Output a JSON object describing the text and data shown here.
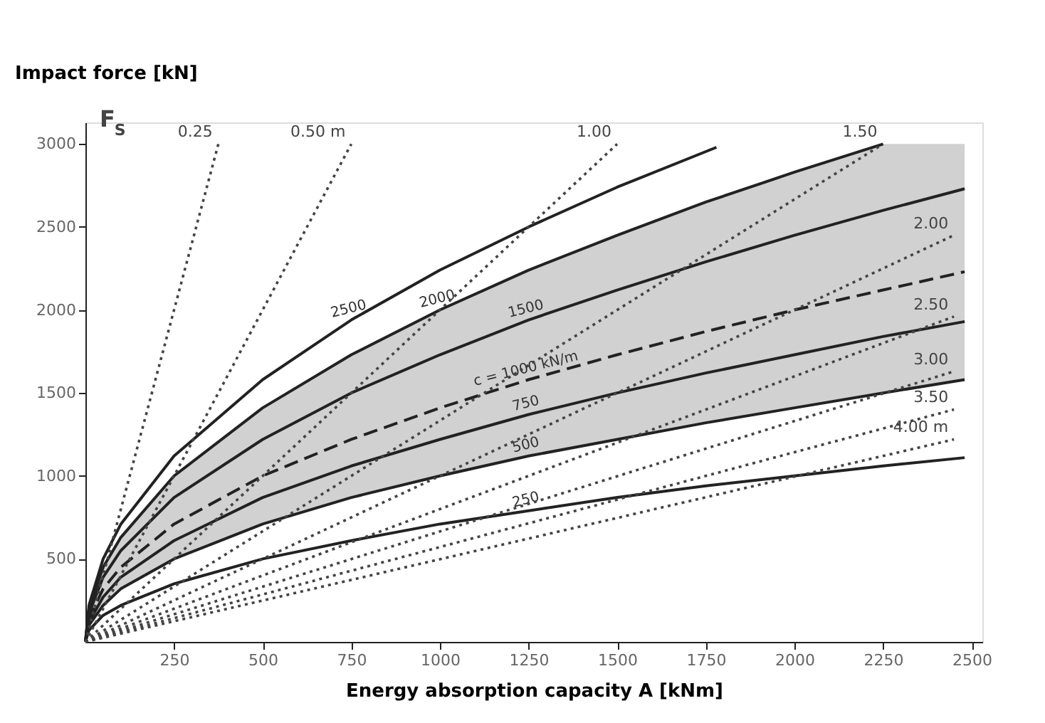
{
  "chart_data": {
    "type": "line",
    "xlabel": "Energy absorption capacity A [kNm]",
    "ylabel": "Impact force [kN]",
    "annotations": [
      "F$_{S}$"
    ],
    "xlim": [
      0,
      2530
    ],
    "ylim": [
      0,
      3130
    ],
    "xticks": [
      250,
      500,
      750,
      1000,
      1250,
      1500,
      1750,
      2000,
      2250,
      2500
    ],
    "yticks": [
      500,
      1000,
      1500,
      2000,
      2500,
      3000
    ],
    "grid": false,
    "marker": "none",
    "series": [
      {
        "name": "2500",
        "color": "#222222",
        "line_style": "solid",
        "x": [
          0,
          10,
          50,
          100,
          250,
          500,
          750,
          1000,
          1250,
          1500,
          1780
        ],
        "values": [
          0,
          220,
          500,
          710,
          1120,
          1580,
          1940,
          2240,
          2500,
          2740,
          2980
        ]
      },
      {
        "name": "2000",
        "color": "#222222",
        "line_style": "solid",
        "x": [
          0,
          10,
          50,
          100,
          250,
          500,
          750,
          1000,
          1250,
          1500,
          1750,
          2000,
          2250
        ],
        "values": [
          0,
          200,
          450,
          630,
          1000,
          1410,
          1730,
          2000,
          2240,
          2450,
          2650,
          2830,
          3000
        ]
      },
      {
        "name": "1500",
        "color": "#222222",
        "line_style": "solid",
        "x": [
          0,
          10,
          50,
          100,
          250,
          500,
          750,
          1000,
          1250,
          1500,
          1750,
          2000,
          2250,
          2480
        ],
        "values": [
          0,
          170,
          390,
          550,
          870,
          1220,
          1500,
          1730,
          1940,
          2120,
          2290,
          2450,
          2600,
          2730
        ]
      },
      {
        "name": "c = 1000 kN/m",
        "color": "#222222",
        "line_style": "dashed",
        "x": [
          0,
          10,
          50,
          100,
          250,
          500,
          750,
          1000,
          1250,
          1500,
          1750,
          2000,
          2250,
          2480
        ],
        "values": [
          0,
          140,
          320,
          450,
          710,
          1000,
          1220,
          1410,
          1580,
          1730,
          1870,
          2000,
          2120,
          2230
        ],
        "lower": [
          0,
          100,
          220,
          320,
          500,
          710,
          870,
          1000,
          1120,
          1220,
          1320,
          1410,
          1500,
          1580
        ],
        "upper": [
          0,
          200,
          450,
          630,
          1000,
          1410,
          1730,
          2000,
          2240,
          2450,
          2650,
          2830,
          3000,
          3000
        ]
      },
      {
        "name": "750",
        "color": "#222222",
        "line_style": "solid",
        "x": [
          0,
          10,
          50,
          100,
          250,
          500,
          750,
          1000,
          1250,
          1500,
          1750,
          2000,
          2250,
          2480
        ],
        "values": [
          0,
          120,
          270,
          390,
          610,
          870,
          1060,
          1220,
          1370,
          1500,
          1620,
          1730,
          1840,
          1930
        ]
      },
      {
        "name": "500",
        "color": "#222222",
        "line_style": "solid",
        "x": [
          0,
          10,
          50,
          100,
          250,
          500,
          750,
          1000,
          1250,
          1500,
          1750,
          2000,
          2250,
          2480
        ],
        "values": [
          0,
          100,
          220,
          320,
          500,
          710,
          870,
          1000,
          1120,
          1220,
          1320,
          1410,
          1500,
          1580
        ]
      },
      {
        "name": "250",
        "color": "#222222",
        "line_style": "solid",
        "x": [
          0,
          10,
          50,
          100,
          250,
          500,
          750,
          1000,
          1250,
          1500,
          1750,
          2000,
          2250,
          2480
        ],
        "values": [
          0,
          70,
          160,
          220,
          350,
          500,
          610,
          710,
          790,
          870,
          940,
          1000,
          1060,
          1110
        ]
      },
      {
        "name": "0.25",
        "color": "#444444",
        "line_style": "dotted",
        "x": [
          0,
          375
        ],
        "values": [
          0,
          3000
        ]
      },
      {
        "name": "0.50 m",
        "color": "#444444",
        "line_style": "dotted",
        "x": [
          0,
          750
        ],
        "values": [
          0,
          3000
        ]
      },
      {
        "name": "1.00",
        "color": "#444444",
        "line_style": "dotted",
        "x": [
          0,
          1500
        ],
        "values": [
          0,
          3000
        ]
      },
      {
        "name": "1.50",
        "color": "#444444",
        "line_style": "dotted",
        "x": [
          0,
          2250
        ],
        "values": [
          0,
          3000
        ]
      },
      {
        "name": "2.00",
        "color": "#444444",
        "line_style": "dotted",
        "x": [
          0,
          2450
        ],
        "values": [
          0,
          2450
        ]
      },
      {
        "name": "2.50",
        "color": "#444444",
        "line_style": "dotted",
        "x": [
          0,
          2450
        ],
        "values": [
          0,
          1960
        ]
      },
      {
        "name": "3.00",
        "color": "#444444",
        "line_style": "dotted",
        "x": [
          0,
          2450
        ],
        "values": [
          0,
          1630
        ]
      },
      {
        "name": "3.50",
        "color": "#444444",
        "line_style": "dotted",
        "x": [
          0,
          2450
        ],
        "values": [
          0,
          1400
        ]
      },
      {
        "name": "4.00 m",
        "color": "#444444",
        "line_style": "dotted",
        "x": [
          0,
          2450
        ],
        "values": [
          0,
          1220
        ]
      }
    ]
  }
}
